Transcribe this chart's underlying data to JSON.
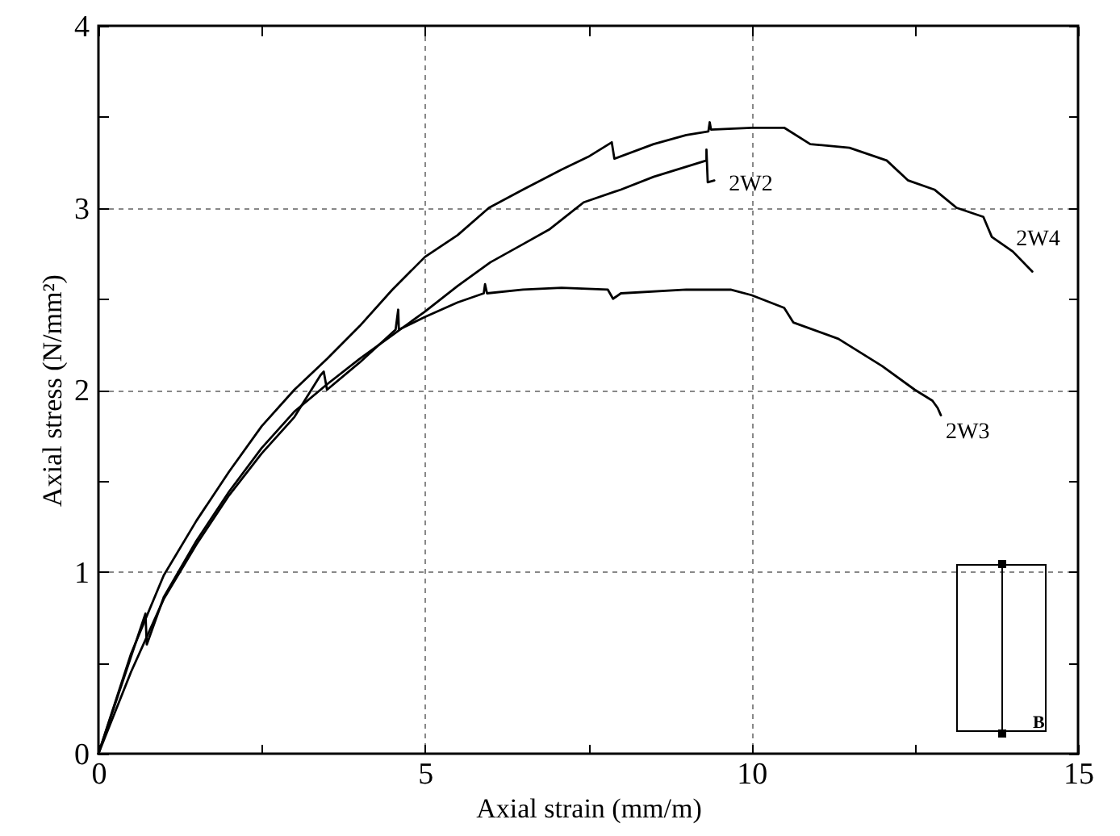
{
  "chart_data": {
    "type": "line",
    "xlabel": "Axial strain (mm/m)",
    "ylabel": "Axial stress (N/mm²)",
    "xlim": [
      0,
      15
    ],
    "xticks": [
      0,
      {
        "value": 2.5,
        "label": null
      },
      5,
      {
        "value": 7.5,
        "label": null
      },
      10,
      {
        "value": 12.5,
        "label": null
      },
      15
    ],
    "ylim": [
      0,
      4
    ],
    "yticks": [
      0,
      {
        "value": 0.5,
        "label": null
      },
      1,
      {
        "value": 1.5,
        "label": null
      },
      2,
      {
        "value": 2.5,
        "label": null
      },
      3,
      {
        "value": 3.5,
        "label": null
      },
      4
    ],
    "grid": true,
    "marker": "none",
    "line_style": "solid",
    "annotations": [
      "B"
    ],
    "series": [
      {
        "name": "2W2",
        "color": "#000000",
        "x": [
          0,
          0.72,
          0.74,
          1,
          1.5,
          2,
          2.5,
          3,
          3.5,
          4,
          4.5,
          5,
          5.5,
          6,
          6.5,
          6.9,
          7.43,
          8,
          8.5,
          9.31,
          9.31,
          9.33,
          9.43
        ],
        "values": [
          0,
          0.77,
          0.6,
          0.86,
          1.17,
          1.44,
          1.68,
          1.88,
          2.03,
          2.17,
          2.3,
          2.43,
          2.57,
          2.7,
          2.8,
          2.88,
          3.03,
          3.1,
          3.17,
          3.26,
          3.32,
          3.14,
          3.15
        ]
      },
      {
        "name": "2W4",
        "color": "#000000",
        "x": [
          0,
          0.5,
          1,
          1.5,
          2,
          2.5,
          3,
          3.5,
          4,
          4.5,
          5,
          5.5,
          5.98,
          6.5,
          7.09,
          7.5,
          7.86,
          7.9,
          8.5,
          9,
          9.34,
          9.36,
          9.38,
          10,
          10.5,
          10.9,
          11.5,
          12.07,
          12.4,
          12.8,
          13.14,
          13.55,
          13.68,
          14,
          14.3
        ],
        "values": [
          0,
          0.55,
          0.98,
          1.28,
          1.55,
          1.8,
          2,
          2.17,
          2.35,
          2.55,
          2.73,
          2.85,
          3,
          3.1,
          3.21,
          3.28,
          3.36,
          3.27,
          3.35,
          3.4,
          3.42,
          3.47,
          3.43,
          3.44,
          3.44,
          3.35,
          3.33,
          3.26,
          3.15,
          3.1,
          3,
          2.95,
          2.84,
          2.76,
          2.65
        ]
      },
      {
        "name": "2W3",
        "color": "#000000",
        "x": [
          0,
          0.5,
          1,
          1.5,
          2,
          2.5,
          3,
          3.4,
          3.45,
          3.5,
          4,
          4.55,
          4.59,
          4.6,
          5,
          5.5,
          5.9,
          5.92,
          5.95,
          6.5,
          7.09,
          7.8,
          7.88,
          8,
          9,
          9.68,
          10,
          10.5,
          10.64,
          11.33,
          12,
          12.5,
          12.77,
          12.85,
          12.9
        ],
        "values": [
          0,
          0.45,
          0.85,
          1.15,
          1.42,
          1.65,
          1.85,
          2.08,
          2.1,
          2,
          2.15,
          2.33,
          2.44,
          2.33,
          2.4,
          2.48,
          2.53,
          2.58,
          2.53,
          2.55,
          2.56,
          2.55,
          2.5,
          2.53,
          2.55,
          2.55,
          2.52,
          2.45,
          2.37,
          2.28,
          2.13,
          2,
          1.94,
          1.9,
          1.86
        ]
      }
    ]
  }
}
